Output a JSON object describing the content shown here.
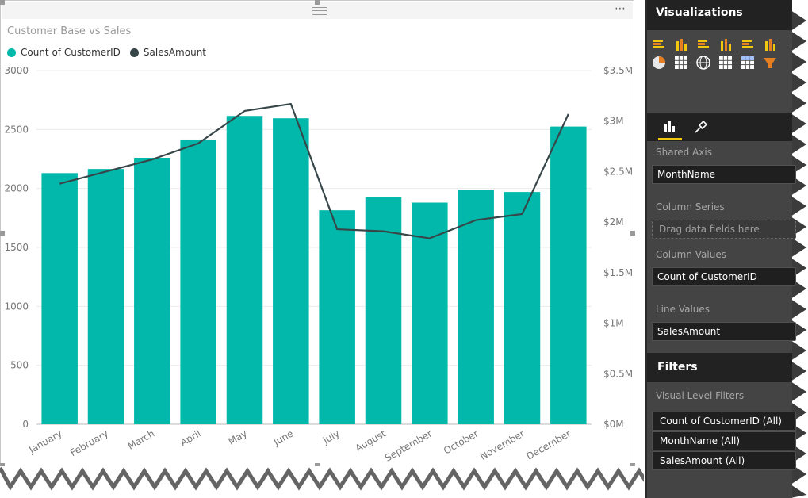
{
  "visual": {
    "title": "Customer Base vs Sales",
    "more_menu": "⋯"
  },
  "chart_data": {
    "type": "bar",
    "title": "Customer Base vs Sales",
    "categories": [
      "January",
      "February",
      "March",
      "April",
      "May",
      "June",
      "July",
      "August",
      "September",
      "October",
      "November",
      "December"
    ],
    "series": [
      {
        "name": "Count of CustomerID",
        "type": "bar",
        "axis": "left",
        "color": "#01B8AA",
        "values": [
          2130,
          2165,
          2260,
          2415,
          2615,
          2595,
          1815,
          1925,
          1880,
          1990,
          1970,
          2525
        ]
      },
      {
        "name": "SalesAmount",
        "type": "line",
        "axis": "right",
        "color": "#374649",
        "values": [
          2380000,
          2500000,
          2620000,
          2780000,
          3100000,
          3170000,
          1930000,
          1910000,
          1840000,
          2020000,
          2080000,
          3070000
        ]
      }
    ],
    "left_axis": {
      "ylim": [
        0,
        3000
      ],
      "ticks": [
        0,
        500,
        1000,
        1500,
        2000,
        2500,
        3000
      ],
      "tick_labels": [
        "0",
        "500",
        "1000",
        "1500",
        "2000",
        "2500",
        "3000"
      ]
    },
    "right_axis": {
      "ylim": [
        0,
        3500000
      ],
      "ticks": [
        0,
        500000,
        1000000,
        1500000,
        2000000,
        2500000,
        3000000,
        3500000
      ],
      "tick_labels": [
        "$0M",
        "$0.5M",
        "$1M",
        "$1.5M",
        "$2M",
        "$2.5M",
        "$3M",
        "$3.5M"
      ]
    },
    "grid": true,
    "legend_position": "top-left"
  },
  "panel": {
    "visualizations_title": "Visualizations",
    "tab_fields_icon": "bar-chart-icon",
    "tab_format_icon": "paint-roller-icon",
    "viz_icons": [
      "stacked-bar-icon",
      "stacked-column-icon",
      "clustered-bar-icon",
      "clustered-column-icon",
      "stacked-bar-100-icon",
      "stacked-column-100-icon",
      "pie-icon",
      "treemap-icon",
      "map-icon",
      "table-icon",
      "matrix-icon",
      "funnel-icon"
    ],
    "shared_axis_label": "Shared Axis",
    "shared_axis_value": "MonthName",
    "column_series_label": "Column Series",
    "column_series_placeholder": "Drag data fields here",
    "column_values_label": "Column Values",
    "column_values_value": "Count of CustomerID",
    "line_values_label": "Line Values",
    "line_values_value": "SalesAmount",
    "filters_title": "Filters",
    "visual_level_filters_label": "Visual Level Filters",
    "filters": [
      "Count of CustomerID (All)",
      "MonthName (All)",
      "SalesAmount (All)"
    ]
  },
  "colors": {
    "bar": "#01B8AA",
    "line": "#374649",
    "panel_dark": "#252525",
    "panel_mid": "#444444"
  }
}
